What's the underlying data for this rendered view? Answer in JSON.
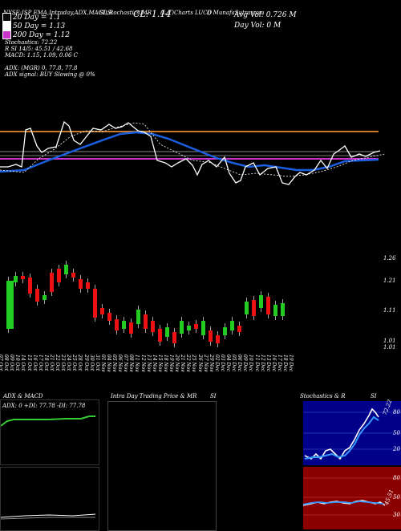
{
  "header": {
    "line1": "NYSE:ISP EMA,Intraday,ADX,MACD,B",
    "line1b": "SI,Stochastics,MR",
    "line1c": "(L,T)Charts LUCD",
    "line1d": "() MunafaSutra.com",
    "cl_label": "CL: 1.14",
    "avg_vol": "Avg Vol: 0.726   M",
    "day_vol": "Day Vol: 0   M"
  },
  "legend": {
    "ema20": "20 Day = 1.1",
    "ema50": "50 Day = 1.13",
    "ema200": "200 Day = 1.12",
    "stoch": "Stochastics: 72.22",
    "rsi": "R          SI 14/5: 45.51 / 42.68",
    "macd": "MACD: 1.15, 1.09, 0.06  C",
    "adx": "ADX:                              (MGR) 0, 77.8, 77.8",
    "adx_signal": "ADX  signal:                                   BUY Slowing @ 0%",
    "colors": {
      "ema20": "#0a0a0a",
      "ema50": "#ffffff",
      "ema200": "#cc33cc"
    }
  },
  "price_axis": {
    "top": "1.26",
    "mid1": "1.21",
    "mid2": "1.11",
    "bottom": "1.01",
    "bottom2": "1.01"
  },
  "dates": [
    "07 Oct",
    "08 Oct",
    "09 Oct",
    "10 Oct",
    "14 Oct",
    "15 Oct",
    "16 Oct",
    "17 Oct",
    "18 Oct",
    "21 Oct",
    "22 Oct",
    "23 Oct",
    "24 Oct",
    "25 Oct",
    "28 Oct",
    "29 Oct",
    "30 Oct",
    "31 Oct",
    "01 Nov",
    "04 Nov",
    "05 Nov",
    "06 Nov",
    "07 Nov",
    "08 Nov",
    "11 Nov",
    "12 Nov",
    "13 Nov",
    "14 Nov",
    "15 Nov",
    "18 Nov",
    "19 Nov",
    "20 Nov",
    "21 Nov",
    "22 Nov",
    "25 Nov",
    "26 Nov",
    "27 Nov",
    "29 Nov",
    "02 Dec",
    "03 Dec",
    "04 Dec",
    "05 Dec",
    "06 Dec",
    "09 Dec",
    "10 Dec",
    "11 Dec",
    "12 Dec",
    "13 Dec",
    "16 Dec",
    "17 Dec",
    "18 Dec",
    "19 Dec"
  ],
  "bottom_panels": {
    "adx_title": "ADX  & MACD",
    "adx_values": "ADX: 0  +DI: 77.78  -DI: 77.78",
    "intraday_title": "Intra  Day Trading Price  & MR",
    "intraday_si": "SI",
    "stoch_title": "Stochastics & R",
    "stoch_si": "SI",
    "stoch_value": "72.22",
    "stoch_axis": [
      "80",
      "50",
      "20"
    ],
    "rsi_value": "45.51",
    "rsi_axis": [
      "80",
      "50",
      "30"
    ]
  }
}
